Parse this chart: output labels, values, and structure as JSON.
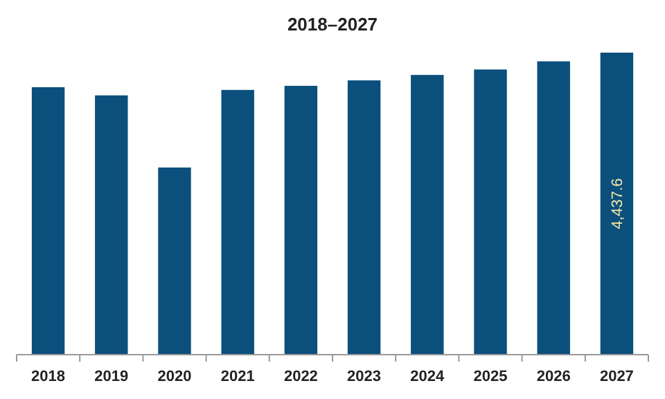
{
  "chart_data": {
    "type": "bar",
    "title": "2018–2027",
    "categories": [
      "2018",
      "2019",
      "2020",
      "2021",
      "2022",
      "2023",
      "2024",
      "2025",
      "2026",
      "2027"
    ],
    "values": [
      3930,
      3810,
      2750,
      3890,
      3950,
      4030,
      4110,
      4190,
      4310,
      4437.6
    ],
    "color": "#0b4f7c",
    "value_labels": [
      null,
      null,
      null,
      null,
      null,
      null,
      null,
      null,
      null,
      "4,437.6"
    ]
  }
}
